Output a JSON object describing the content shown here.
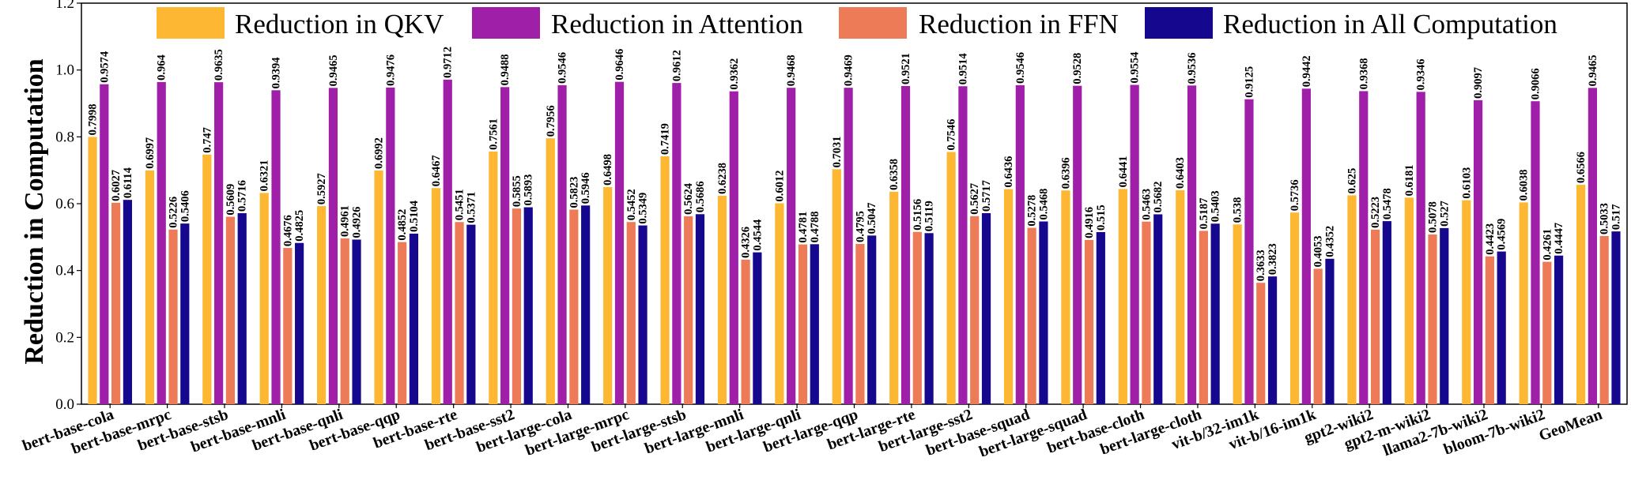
{
  "chart_data": {
    "type": "bar",
    "title": "",
    "xlabel": "",
    "ylabel": "Reduction in Computation",
    "ylim": [
      0,
      1.2
    ],
    "yticks": [
      "0.0",
      "0.2",
      "0.4",
      "0.6",
      "0.8",
      "1.0",
      "1.2"
    ],
    "legend_position": "top",
    "categories": [
      "bert-base-cola",
      "bert-base-mrpc",
      "bert-base-stsb",
      "bert-base-mnli",
      "bert-base-qnli",
      "bert-base-qqp",
      "bert-base-rte",
      "bert-base-sst2",
      "bert-large-cola",
      "bert-large-mrpc",
      "bert-large-stsb",
      "bert-large-mnli",
      "bert-large-qnli",
      "bert-large-qqp",
      "bert-large-rte",
      "bert-large-sst2",
      "bert-base-squad",
      "bert-large-squad",
      "bert-base-cloth",
      "bert-large-cloth",
      "vit-b/32-im1k",
      "vit-b/16-im1k",
      "gpt2-wiki2",
      "gpt2-m-wiki2",
      "llama2-7b-wiki2",
      "bloom-7b-wiki2",
      "GeoMean"
    ],
    "series": [
      {
        "name": "Reduction in QKV",
        "color": "#FDB732",
        "values": [
          0.7998,
          0.6997,
          0.747,
          0.6321,
          0.5927,
          0.6992,
          0.6467,
          0.7561,
          0.7956,
          0.6498,
          0.7419,
          0.6238,
          0.6012,
          0.7031,
          0.6358,
          0.7546,
          0.6436,
          0.6396,
          0.6441,
          0.6403,
          0.538,
          0.5736,
          0.625,
          0.6181,
          0.6103,
          0.6038,
          0.6566
        ],
        "labels": [
          "0.7998",
          "0.6997",
          "0.747",
          "0.6321",
          "0.5927",
          "0.6992",
          "0.6467",
          "0.7561",
          "0.7956",
          "0.6498",
          "0.7419",
          "0.6238",
          "0.6012",
          "0.7031",
          "0.6358",
          "0.7546",
          "0.6436",
          "0.6396",
          "0.6441",
          "0.6403",
          "0.538",
          "0.5736",
          "0.625",
          "0.6181",
          "0.6103",
          "0.6038",
          "0.6566"
        ]
      },
      {
        "name": "Reduction in Attention",
        "color": "#A01FA8",
        "values": [
          0.9574,
          0.964,
          0.9635,
          0.9394,
          0.9465,
          0.9476,
          0.9712,
          0.9488,
          0.9546,
          0.9646,
          0.9612,
          0.9362,
          0.9468,
          0.9469,
          0.9521,
          0.9514,
          0.9546,
          0.9528,
          0.9554,
          0.9536,
          0.9125,
          0.9442,
          0.9368,
          0.9346,
          0.9097,
          0.9066,
          0.9465
        ],
        "labels": [
          "0.9574",
          "0.964",
          "0.9635",
          "0.9394",
          "0.9465",
          "0.9476",
          "0.9712",
          "0.9488",
          "0.9546",
          "0.9646",
          "0.9612",
          "0.9362",
          "0.9468",
          "0.9469",
          "0.9521",
          "0.9514",
          "0.9546",
          "0.9528",
          "0.9554",
          "0.9536",
          "0.9125",
          "0.9442",
          "0.9368",
          "0.9346",
          "0.9097",
          "0.9066",
          "0.9465"
        ]
      },
      {
        "name": "Reduction in FFN",
        "color": "#EE7B58",
        "values": [
          0.6027,
          0.5226,
          0.5609,
          0.4676,
          0.4961,
          0.4852,
          0.5451,
          0.5855,
          0.5823,
          0.5452,
          0.5624,
          0.4326,
          0.4781,
          0.4795,
          0.5156,
          0.5627,
          0.5278,
          0.4916,
          0.5463,
          0.5187,
          0.3633,
          0.4053,
          0.5223,
          0.5078,
          0.4423,
          0.4261,
          0.5033
        ],
        "labels": [
          "0.6027",
          "0.5226",
          "0.5609",
          "0.4676",
          "0.4961",
          "0.4852",
          "0.5451",
          "0.5855",
          "0.5823",
          "0.5452",
          "0.5624",
          "0.4326",
          "0.4781",
          "0.4795",
          "0.5156",
          "0.5627",
          "0.5278",
          "0.4916",
          "0.5463",
          "0.5187",
          "0.3633",
          "0.4053",
          "0.5223",
          "0.5078",
          "0.4423",
          "0.4261",
          "0.5033"
        ]
      },
      {
        "name": "Reduction in All Computation",
        "color": "#16088E",
        "values": [
          0.6114,
          0.5406,
          0.5716,
          0.4825,
          0.4926,
          0.5104,
          0.5371,
          0.5893,
          0.5946,
          0.5349,
          0.5686,
          0.4544,
          0.4788,
          0.5047,
          0.5119,
          0.5717,
          0.5468,
          0.515,
          0.5682,
          0.5403,
          0.3823,
          0.4352,
          0.5478,
          0.527,
          0.4569,
          0.4447,
          0.517
        ],
        "labels": [
          "0.6114",
          "0.5406",
          "0.5716",
          "0.4825",
          "0.4926",
          "0.5104",
          "0.5371",
          "0.5893",
          "0.5946",
          "0.5349",
          "0.5686",
          "0.4544",
          "0.4788",
          "0.5047",
          "0.5119",
          "0.5717",
          "0.5468",
          "0.515",
          "0.5682",
          "0.5403",
          "0.3823",
          "0.4352",
          "0.5478",
          "0.527",
          "0.4569",
          "0.4447",
          "0.517"
        ]
      }
    ]
  }
}
